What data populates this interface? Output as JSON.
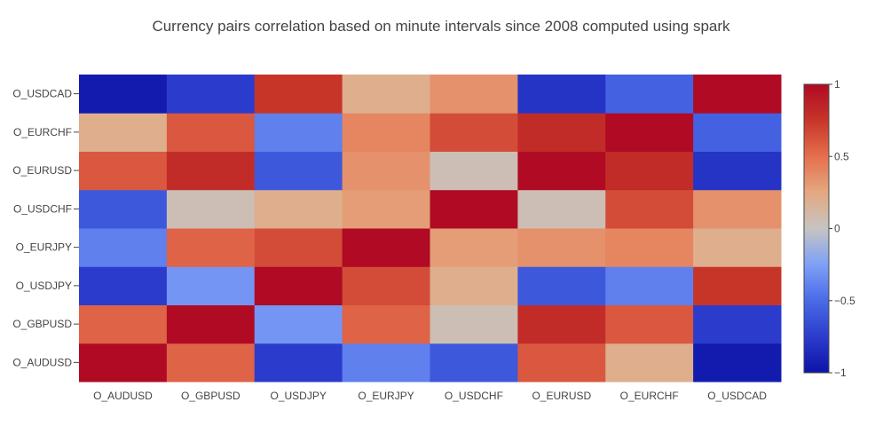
{
  "chart_data": {
    "type": "heatmap",
    "title": "Currency pairs correlation based on minute intervals since 2008 computed using spark",
    "x_categories": [
      "O_AUDUSD",
      "O_GBPUSD",
      "O_USDJPY",
      "O_EURJPY",
      "O_USDCHF",
      "O_EURUSD",
      "O_EURCHF",
      "O_USDCAD"
    ],
    "y_categories": [
      "O_AUDUSD",
      "O_GBPUSD",
      "O_USDJPY",
      "O_EURJPY",
      "O_USDCHF",
      "O_EURUSD",
      "O_EURCHF",
      "O_USDCAD"
    ],
    "z": [
      [
        1.0,
        0.55,
        -0.75,
        -0.4,
        -0.6,
        0.6,
        0.2,
        -0.95
      ],
      [
        0.55,
        1.0,
        -0.3,
        0.55,
        0.05,
        0.8,
        0.6,
        -0.75
      ],
      [
        -0.75,
        -0.3,
        1.0,
        0.65,
        0.2,
        -0.6,
        -0.4,
        0.75
      ],
      [
        -0.4,
        0.55,
        0.65,
        1.0,
        0.3,
        0.35,
        0.4,
        0.2
      ],
      [
        -0.6,
        0.05,
        0.2,
        0.3,
        1.0,
        0.05,
        0.65,
        0.35
      ],
      [
        0.6,
        0.8,
        -0.6,
        0.35,
        0.05,
        1.0,
        0.8,
        -0.8
      ],
      [
        0.2,
        0.6,
        -0.4,
        0.4,
        0.65,
        0.8,
        1.0,
        -0.55
      ],
      [
        -0.95,
        -0.75,
        0.75,
        0.2,
        0.35,
        -0.8,
        -0.55,
        1.0
      ]
    ],
    "zmin": -1,
    "zmax": 1,
    "colorscale": [
      [
        0.0,
        "#0d13a8"
      ],
      [
        0.125,
        "#2b3ccc"
      ],
      [
        0.25,
        "#4a6ae6"
      ],
      [
        0.375,
        "#7ea0f7"
      ],
      [
        0.5,
        "#c6c4c2"
      ],
      [
        0.625,
        "#e4a880"
      ],
      [
        0.75,
        "#e56f4d"
      ],
      [
        0.875,
        "#c73529"
      ],
      [
        1.0,
        "#b00a24"
      ]
    ],
    "colorbar_ticks": [
      {
        "value": 1,
        "label": "1"
      },
      {
        "value": 0.5,
        "label": "0.5"
      },
      {
        "value": 0,
        "label": "0"
      },
      {
        "value": -0.5,
        "label": "−0.5"
      },
      {
        "value": -1,
        "label": "−1"
      }
    ]
  }
}
